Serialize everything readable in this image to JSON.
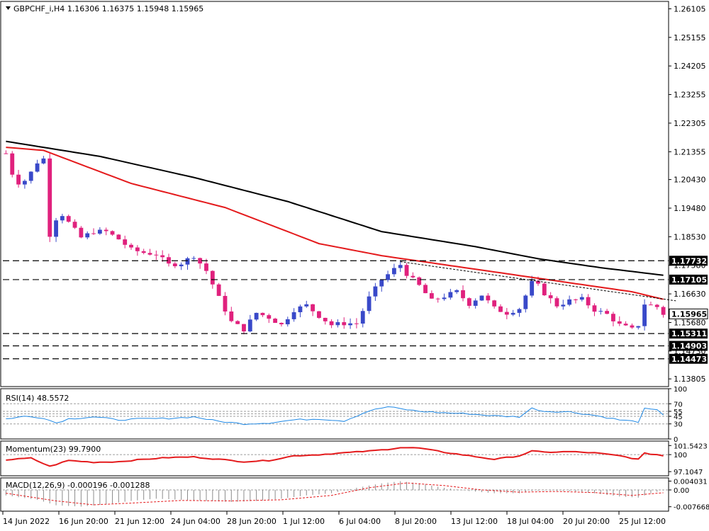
{
  "header": {
    "symbol": "GBPCHF_i,H4",
    "ohlc": "1.16306 1.16375 1.15948 1.15965"
  },
  "chart_data": [
    {
      "type": "candlestick",
      "title": "GBPCHF_i,H4 1.16306 1.16375 1.15948 1.15965",
      "ylim": [
        1.1355,
        1.2635
      ],
      "y_ticks": [
        "1.26105",
        "1.25155",
        "1.24205",
        "1.23255",
        "1.22305",
        "1.21355",
        "1.20430",
        "1.19480",
        "1.18530",
        "1.17580",
        "1.16630",
        "1.15680",
        "1.14730",
        "1.13805"
      ],
      "price_labels": [
        {
          "value": 1.17732,
          "label": "1.17732",
          "style": "dashed-black"
        },
        {
          "value": 1.17105,
          "label": "1.17105",
          "style": "dashed-black"
        },
        {
          "value": 1.15965,
          "label": "1.15965",
          "style": "current"
        },
        {
          "value": 1.15311,
          "label": "1.15311",
          "style": "dashed-black"
        },
        {
          "value": 1.14903,
          "label": "1.14903",
          "style": "dashed-black"
        },
        {
          "value": 1.14473,
          "label": "1.14473",
          "style": "dashed-black"
        }
      ],
      "x_labels": [
        "14 Jun 2022",
        "16 Jun 20:00",
        "21 Jun 12:00",
        "24 Jun 04:00",
        "28 Jun 20:00",
        "1 Jul 12:00",
        "6 Jul 04:00",
        "8 Jul 20:00",
        "13 Jul 12:00",
        "18 Jul 04:00",
        "20 Jul 20:00",
        "25 Jul 12:00"
      ],
      "price_path_anchors": [
        [
          0,
          1.213
        ],
        [
          1.5,
          1.203
        ],
        [
          3,
          1.204
        ],
        [
          4.5,
          1.208
        ],
        [
          5.7,
          1.213
        ],
        [
          6.2,
          1.21
        ],
        [
          7,
          1.186
        ],
        [
          8.5,
          1.194
        ],
        [
          10,
          1.19
        ],
        [
          12,
          1.185
        ],
        [
          14,
          1.187
        ],
        [
          16,
          1.187
        ],
        [
          18,
          1.1845
        ],
        [
          20,
          1.181
        ],
        [
          22,
          1.18
        ],
        [
          24,
          1.1795
        ],
        [
          26,
          1.176
        ],
        [
          28,
          1.1765
        ],
        [
          30,
          1.179
        ],
        [
          32,
          1.174
        ],
        [
          34,
          1.165
        ],
        [
          36,
          1.157
        ],
        [
          38,
          1.1545
        ],
        [
          40,
          1.16
        ],
        [
          42,
          1.1585
        ],
        [
          44,
          1.156
        ],
        [
          46,
          1.161
        ],
        [
          48,
          1.1625
        ],
        [
          50,
          1.159
        ],
        [
          52,
          1.156
        ],
        [
          54,
          1.1565
        ],
        [
          56,
          1.1565
        ],
        [
          58,
          1.165
        ],
        [
          60,
          1.171
        ],
        [
          62,
          1.1745
        ],
        [
          63,
          1.176
        ],
        [
          64,
          1.173
        ],
        [
          66,
          1.169
        ],
        [
          68,
          1.164
        ],
        [
          70,
          1.1655
        ],
        [
          72,
          1.167
        ],
        [
          74,
          1.163
        ],
        [
          76,
          1.166
        ],
        [
          78,
          1.1615
        ],
        [
          80,
          1.16
        ],
        [
          82,
          1.1615
        ],
        [
          84,
          1.17
        ],
        [
          85,
          1.169
        ],
        [
          86,
          1.1665
        ],
        [
          88,
          1.1625
        ],
        [
          90,
          1.164
        ],
        [
          92,
          1.1645
        ],
        [
          94,
          1.161
        ],
        [
          96,
          1.1595
        ],
        [
          98,
          1.156
        ],
        [
          100,
          1.1545
        ],
        [
          101,
          1.156
        ],
        [
          102,
          1.163
        ],
        [
          103,
          1.1625
        ],
        [
          104,
          1.162
        ],
        [
          105,
          1.15965
        ]
      ],
      "candle_count": 106,
      "series": [
        {
          "name": "",
          "kind": "moving-average",
          "color": "#e41a1c",
          "anchors": [
            [
              0,
              1.215
            ],
            [
              6,
              1.214
            ],
            [
              20,
              1.203
            ],
            [
              35,
              1.195
            ],
            [
              50,
              1.183
            ],
            [
              60,
              1.179
            ],
            [
              70,
              1.176
            ],
            [
              80,
              1.173
            ],
            [
              90,
              1.17
            ],
            [
              100,
              1.167
            ],
            [
              105,
              1.1645
            ]
          ]
        },
        {
          "name": "",
          "kind": "moving-average",
          "color": "#000000",
          "anchors": [
            [
              0,
              1.217
            ],
            [
              15,
              1.212
            ],
            [
              30,
              1.205
            ],
            [
              45,
              1.197
            ],
            [
              60,
              1.187
            ],
            [
              75,
              1.182
            ],
            [
              85,
              1.178
            ],
            [
              95,
              1.175
            ],
            [
              105,
              1.1725
            ]
          ]
        },
        {
          "name": "",
          "kind": "trendline",
          "color": "#000000",
          "anchors": [
            [
              63,
              1.177
            ],
            [
              107,
              1.164
            ]
          ]
        }
      ],
      "colors": {
        "bull": "#3949c9",
        "bear": "#e0217d",
        "ma_fast": "#e41a1c",
        "ma_slow": "#000000"
      }
    },
    {
      "type": "line",
      "title": "RSI(14) 48.5572",
      "ylim": [
        0,
        100
      ],
      "y_ticks": [
        "100",
        "70",
        "55",
        "45",
        "30",
        "0"
      ],
      "levels": [
        70,
        55,
        50,
        45,
        30
      ],
      "series": [
        {
          "name": "",
          "color": "#1e88e5",
          "anchors": [
            [
              0,
              40
            ],
            [
              3,
              45
            ],
            [
              6,
              42
            ],
            [
              8,
              32
            ],
            [
              10,
              40
            ],
            [
              14,
              44
            ],
            [
              18,
              38
            ],
            [
              22,
              40
            ],
            [
              26,
              41
            ],
            [
              30,
              44
            ],
            [
              34,
              35
            ],
            [
              38,
              30
            ],
            [
              42,
              32
            ],
            [
              46,
              38
            ],
            [
              50,
              40
            ],
            [
              54,
              36
            ],
            [
              58,
              56
            ],
            [
              61,
              64
            ],
            [
              63,
              60
            ],
            [
              66,
              55
            ],
            [
              70,
              52
            ],
            [
              74,
              50
            ],
            [
              78,
              46
            ],
            [
              82,
              44
            ],
            [
              84,
              61
            ],
            [
              86,
              55
            ],
            [
              90,
              54
            ],
            [
              94,
              47
            ],
            [
              98,
              38
            ],
            [
              101,
              34
            ],
            [
              102,
              60
            ],
            [
              104,
              57
            ],
            [
              105,
              48.56
            ]
          ]
        }
      ]
    },
    {
      "type": "line",
      "title": "Momentum(23) 99.7900",
      "ylim": [
        96.4,
        102.3
      ],
      "y_ticks": [
        "101.5423",
        "100",
        "97.1047"
      ],
      "levels": [
        100
      ],
      "series": [
        {
          "name": "",
          "color": "#e41a1c",
          "anchors": [
            [
              0,
              99.1
            ],
            [
              4,
              99.4
            ],
            [
              7,
              98.0
            ],
            [
              10,
              99.0
            ],
            [
              14,
              98.7
            ],
            [
              18,
              98.8
            ],
            [
              22,
              99.2
            ],
            [
              26,
              99.5
            ],
            [
              30,
              99.6
            ],
            [
              34,
              99.2
            ],
            [
              38,
              98.8
            ],
            [
              42,
              99.0
            ],
            [
              46,
              99.8
            ],
            [
              50,
              100.0
            ],
            [
              54,
              100.3
            ],
            [
              58,
              100.6
            ],
            [
              61,
              100.9
            ],
            [
              63,
              101.2
            ],
            [
              66,
              101.1
            ],
            [
              70,
              100.4
            ],
            [
              74,
              99.8
            ],
            [
              78,
              99.2
            ],
            [
              82,
              99.8
            ],
            [
              84,
              100.6
            ],
            [
              86,
              100.4
            ],
            [
              90,
              100.5
            ],
            [
              94,
              100.3
            ],
            [
              98,
              99.8
            ],
            [
              101,
              99.2
            ],
            [
              102,
              100.2
            ],
            [
              104,
              100.0
            ],
            [
              105,
              99.79
            ]
          ]
        }
      ]
    },
    {
      "type": "bar",
      "title": "MACD(12,26,9) -0.000196 -0.001288",
      "ylim": [
        -0.0097,
        0.0055
      ],
      "y_ticks": [
        "0.004031",
        "0.00",
        "-0.007668"
      ],
      "levels": [
        0
      ],
      "series": [
        {
          "name": "",
          "kind": "histogram",
          "color": "#8c8c8c",
          "anchors": [
            [
              0,
              -0.0025
            ],
            [
              5,
              -0.0045
            ],
            [
              8,
              -0.007
            ],
            [
              12,
              -0.0076
            ],
            [
              16,
              -0.0065
            ],
            [
              20,
              -0.005
            ],
            [
              24,
              -0.004
            ],
            [
              28,
              -0.0045
            ],
            [
              32,
              -0.005
            ],
            [
              36,
              -0.0055
            ],
            [
              40,
              -0.005
            ],
            [
              44,
              -0.004
            ],
            [
              48,
              -0.0025
            ],
            [
              52,
              -0.0015
            ],
            [
              56,
              0.001
            ],
            [
              60,
              0.003
            ],
            [
              63,
              0.004
            ],
            [
              66,
              0.003
            ],
            [
              70,
              0.001
            ],
            [
              74,
              -0.0005
            ],
            [
              78,
              -0.0015
            ],
            [
              82,
              -0.0015
            ],
            [
              84,
              -0.0005
            ],
            [
              86,
              -0.0002
            ],
            [
              90,
              -0.0005
            ],
            [
              94,
              -0.0015
            ],
            [
              98,
              -0.003
            ],
            [
              101,
              -0.0035
            ],
            [
              103,
              -0.0015
            ],
            [
              105,
              -0.000196
            ]
          ]
        },
        {
          "name": "",
          "kind": "signal",
          "color": "#e41a1c",
          "anchors": [
            [
              0,
              -0.0015
            ],
            [
              8,
              -0.005
            ],
            [
              14,
              -0.0068
            ],
            [
              20,
              -0.006
            ],
            [
              28,
              -0.0048
            ],
            [
              36,
              -0.005
            ],
            [
              44,
              -0.0045
            ],
            [
              52,
              -0.0025
            ],
            [
              58,
              0.001
            ],
            [
              64,
              0.0032
            ],
            [
              70,
              0.002
            ],
            [
              76,
              0.0
            ],
            [
              82,
              -0.001
            ],
            [
              88,
              -0.0007
            ],
            [
              94,
              -0.0012
            ],
            [
              100,
              -0.0025
            ],
            [
              105,
              -0.001288
            ]
          ]
        }
      ]
    }
  ]
}
